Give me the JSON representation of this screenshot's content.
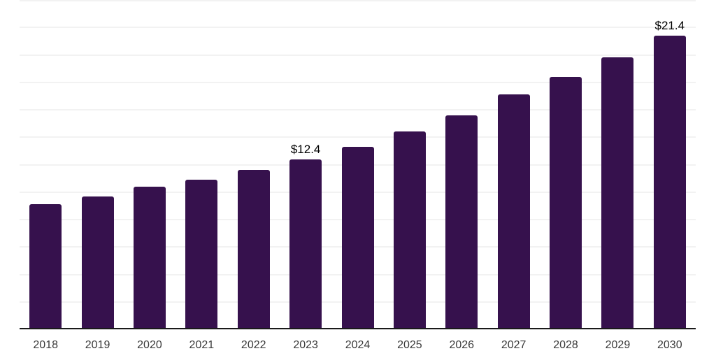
{
  "chart_data": {
    "type": "bar",
    "title": "",
    "xlabel": "",
    "ylabel": "",
    "categories": [
      "2018",
      "2019",
      "2020",
      "2021",
      "2022",
      "2023",
      "2024",
      "2025",
      "2026",
      "2027",
      "2028",
      "2029",
      "2030"
    ],
    "values": [
      9.1,
      9.7,
      10.4,
      10.9,
      11.6,
      12.4,
      13.3,
      14.4,
      15.6,
      17.1,
      18.4,
      19.8,
      21.4
    ],
    "data_labels": {
      "2023": "$12.4",
      "2030": "$21.4"
    },
    "ylim": [
      0,
      24
    ],
    "gridline_step": 2,
    "grid": "on",
    "legend_position": "none",
    "bar_color": "#36114d",
    "axis_color": "#1a1a1a",
    "gridline_color": "#f2f2f2",
    "tick_label_color": "#3a3a3a",
    "data_label_color": "#000000",
    "background_color": "#ffffff"
  }
}
